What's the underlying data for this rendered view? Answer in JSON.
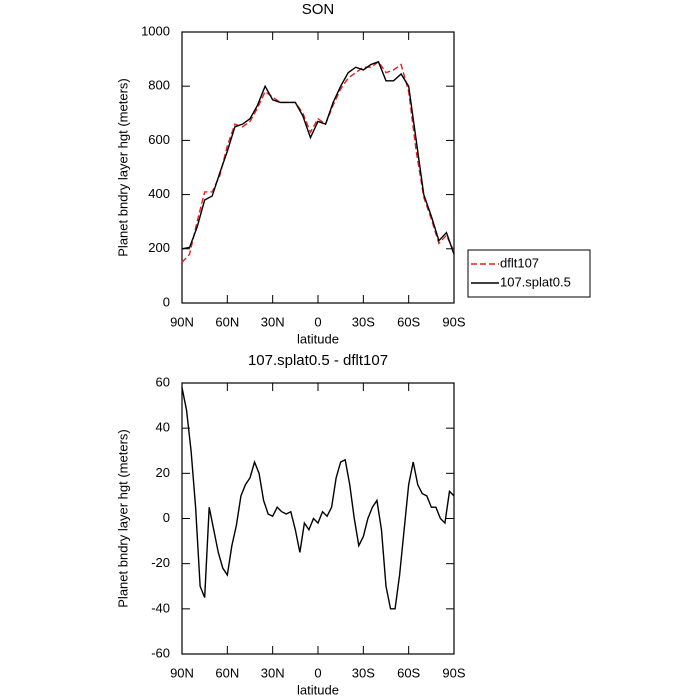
{
  "chart_data": [
    {
      "type": "line",
      "title": "SON",
      "x_label": "latitude",
      "y_label": "Planet bndry layer hgt (meters)",
      "x": [
        90,
        85,
        80,
        75,
        70,
        65,
        60,
        55,
        50,
        45,
        40,
        35,
        30,
        25,
        20,
        15,
        10,
        5,
        0,
        -5,
        -10,
        -15,
        -20,
        -25,
        -30,
        -35,
        -40,
        -45,
        -50,
        -55,
        -60,
        -65,
        -70,
        -75,
        -80,
        -85,
        -90
      ],
      "series": [
        {
          "name": "dflt107",
          "color": "#e02020",
          "style": "dashed",
          "values": [
            150,
            180,
            300,
            410,
            410,
            470,
            580,
            660,
            650,
            670,
            720,
            780,
            760,
            740,
            740,
            740,
            700,
            630,
            680,
            660,
            730,
            790,
            830,
            850,
            870,
            870,
            890,
            850,
            860,
            880,
            780,
            560,
            390,
            310,
            220,
            250,
            190
          ]
        },
        {
          "name": "107.splat0.5",
          "color": "#000000",
          "style": "solid",
          "values": [
            200,
            205,
            280,
            380,
            395,
            480,
            560,
            650,
            660,
            680,
            730,
            800,
            750,
            740,
            740,
            740,
            690,
            610,
            670,
            660,
            740,
            800,
            850,
            870,
            860,
            880,
            890,
            820,
            820,
            845,
            800,
            600,
            400,
            320,
            230,
            260,
            180
          ]
        }
      ],
      "xlim": [
        90,
        -90
      ],
      "xticks": [
        {
          "value": 90,
          "label": "90N"
        },
        {
          "value": 60,
          "label": "60N"
        },
        {
          "value": 30,
          "label": "30N"
        },
        0,
        {
          "value": -30,
          "label": "30S"
        },
        {
          "value": -60,
          "label": "60S"
        },
        {
          "value": -90,
          "label": "90S"
        }
      ],
      "ylim": [
        0,
        1000
      ],
      "yticks": [
        0,
        200,
        400,
        600,
        800,
        1000
      ],
      "legend": "right"
    },
    {
      "type": "line",
      "title": "107.splat0.5 - dflt107",
      "x_label": "latitude",
      "y_label": "Planet bndry layer hgt (meters)",
      "x": [
        90,
        87,
        84,
        81,
        78,
        75,
        72,
        69,
        66,
        63,
        60,
        57,
        54,
        51,
        48,
        45,
        42,
        39,
        36,
        33,
        30,
        27,
        24,
        21,
        18,
        15,
        12,
        9,
        6,
        3,
        0,
        -3,
        -6,
        -9,
        -12,
        -15,
        -18,
        -21,
        -24,
        -27,
        -30,
        -33,
        -36,
        -39,
        -42,
        -45,
        -48,
        -51,
        -54,
        -57,
        -60,
        -63,
        -66,
        -69,
        -72,
        -75,
        -78,
        -81,
        -84,
        -87,
        -90
      ],
      "series": [
        {
          "color": "#000000",
          "style": "solid",
          "values": [
            58,
            48,
            30,
            5,
            -30,
            -35,
            5,
            -5,
            -15,
            -22,
            -25,
            -12,
            -3,
            10,
            15,
            18,
            25,
            20,
            8,
            2,
            1,
            5,
            3,
            2,
            3,
            -5,
            -15,
            -2,
            -5,
            0,
            -2,
            3,
            1,
            5,
            18,
            25,
            26,
            15,
            0,
            -12,
            -8,
            0,
            5,
            8,
            -5,
            -30,
            -40,
            -40,
            -25,
            -5,
            15,
            25,
            15,
            11,
            10,
            5,
            5,
            0,
            -2,
            12,
            10
          ]
        }
      ],
      "xlim": [
        90,
        -90
      ],
      "xticks": [
        {
          "value": 90,
          "label": "90N"
        },
        {
          "value": 60,
          "label": "60N"
        },
        {
          "value": 30,
          "label": "30N"
        },
        0,
        {
          "value": -30,
          "label": "30S"
        },
        {
          "value": -60,
          "label": "60S"
        },
        {
          "value": -90,
          "label": "90S"
        }
      ],
      "ylim": [
        -60,
        60
      ],
      "yticks": [
        -60,
        -40,
        -20,
        0,
        20,
        40,
        60
      ]
    }
  ]
}
